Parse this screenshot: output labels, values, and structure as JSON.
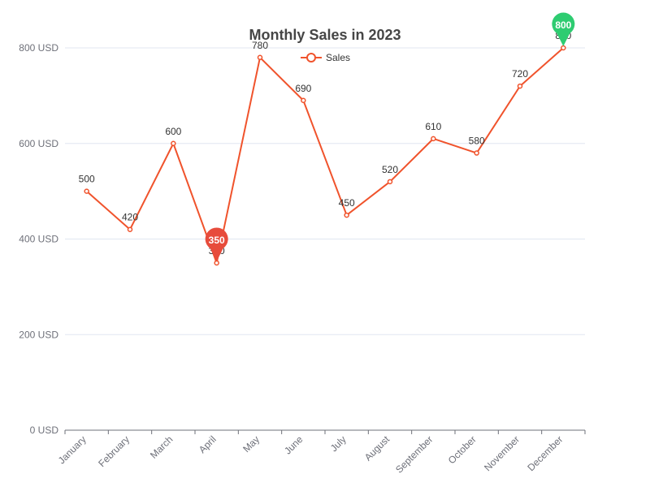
{
  "chart_data": {
    "type": "line",
    "title": "Monthly Sales in 2023",
    "categories": [
      "January",
      "February",
      "March",
      "April",
      "May",
      "June",
      "July",
      "August",
      "September",
      "October",
      "November",
      "December"
    ],
    "series": [
      {
        "name": "Sales",
        "values": [
          500,
          420,
          600,
          350,
          780,
          690,
          450,
          520,
          610,
          580,
          720,
          800
        ]
      }
    ],
    "ylim": [
      0,
      800
    ],
    "yticks": [
      0,
      200,
      400,
      600,
      800
    ],
    "y_tick_labels": [
      "0 USD",
      "200 USD",
      "400 USD",
      "600 USD",
      "800 USD"
    ],
    "grid": true,
    "legend": "top-center",
    "markers": {
      "min": {
        "category": "April",
        "value": 350,
        "label": "350",
        "color": "#e74c3c"
      },
      "max": {
        "category": "December",
        "value": 800,
        "label": "800",
        "color": "#2ecc71"
      }
    },
    "colors": {
      "line": "#f0532c",
      "grid": "#e0e6f1",
      "axis": "#6e7079"
    }
  }
}
